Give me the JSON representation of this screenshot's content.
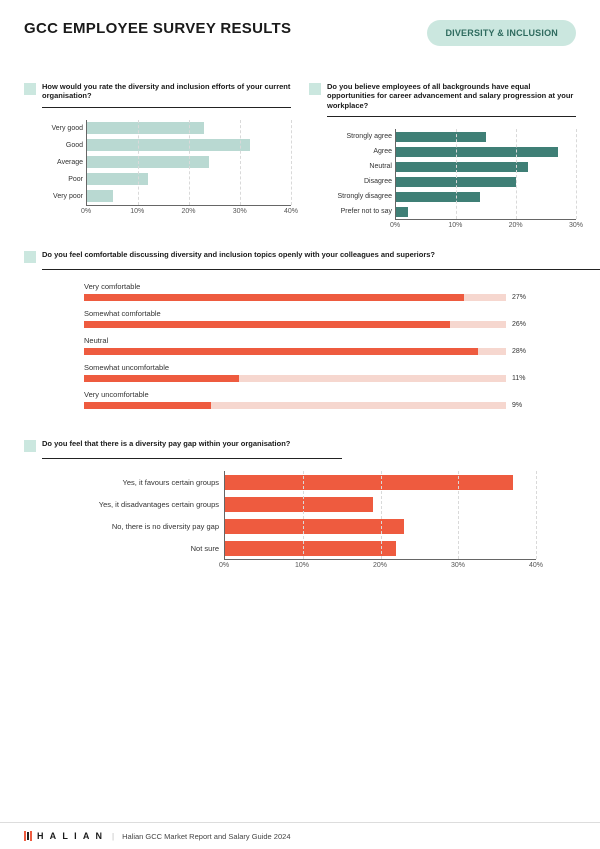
{
  "header": {
    "title": "GCC EMPLOYEE SURVEY RESULTS",
    "tag": "DIVERSITY & INCLUSION"
  },
  "chart1": {
    "type": "bar-horizontal",
    "question": "How would you rate the diversity and inclusion efforts of your current organisation?",
    "bar_color": "#b9d9d2",
    "xmax": 40,
    "xtick_step": 10,
    "grid_color": "#d9d9d9",
    "categories": [
      "Very good",
      "Good",
      "Average",
      "Poor",
      "Very poor"
    ],
    "values": [
      23,
      32,
      24,
      12,
      5
    ],
    "tick_suffix": "%"
  },
  "chart2": {
    "type": "bar-horizontal",
    "question": "Do you believe employees of all backgrounds have equal opportunities for career advancement and salary progression at your workplace?",
    "bar_color": "#3f7f76",
    "xmax": 30,
    "xtick_step": 10,
    "grid_color": "#d9d9d9",
    "categories": [
      "Strongly agree",
      "Agree",
      "Neutral",
      "Disagree",
      "Strongly disagree",
      "Prefer not to say"
    ],
    "values": [
      15,
      27,
      22,
      20,
      14,
      2
    ],
    "tick_suffix": "%"
  },
  "chart3": {
    "type": "progress-bars",
    "question": "Do you feel comfortable discussing diversity and inclusion topics openly with your colleagues and superiors?",
    "track_color": "#f6d7cf",
    "fill_color": "#ee5b3f",
    "xmax": 30,
    "items": [
      {
        "label": "Very comfortable",
        "value": 27
      },
      {
        "label": "Somewhat comfortable",
        "value": 26
      },
      {
        "label": "Neutral",
        "value": 28
      },
      {
        "label": "Somewhat uncomfortable",
        "value": 11
      },
      {
        "label": "Very uncomfortable",
        "value": 9
      }
    ],
    "value_suffix": "%"
  },
  "chart4": {
    "type": "bar-horizontal",
    "question": "Do you feel that there is a diversity pay gap within your organisation?",
    "bar_color": "#ee5b3f",
    "xmax": 40,
    "xtick_step": 10,
    "grid_color": "#d9d9d9",
    "categories": [
      "Yes, it favours certain groups",
      "Yes, it disadvantages certain groups",
      "No, there is no diversity pay gap",
      "Not sure"
    ],
    "values": [
      37,
      19,
      23,
      22
    ],
    "tick_suffix": "%"
  },
  "footer": {
    "brand": "H A L I A N",
    "text": "Halian GCC Market Report and Salary Guide 2024"
  }
}
